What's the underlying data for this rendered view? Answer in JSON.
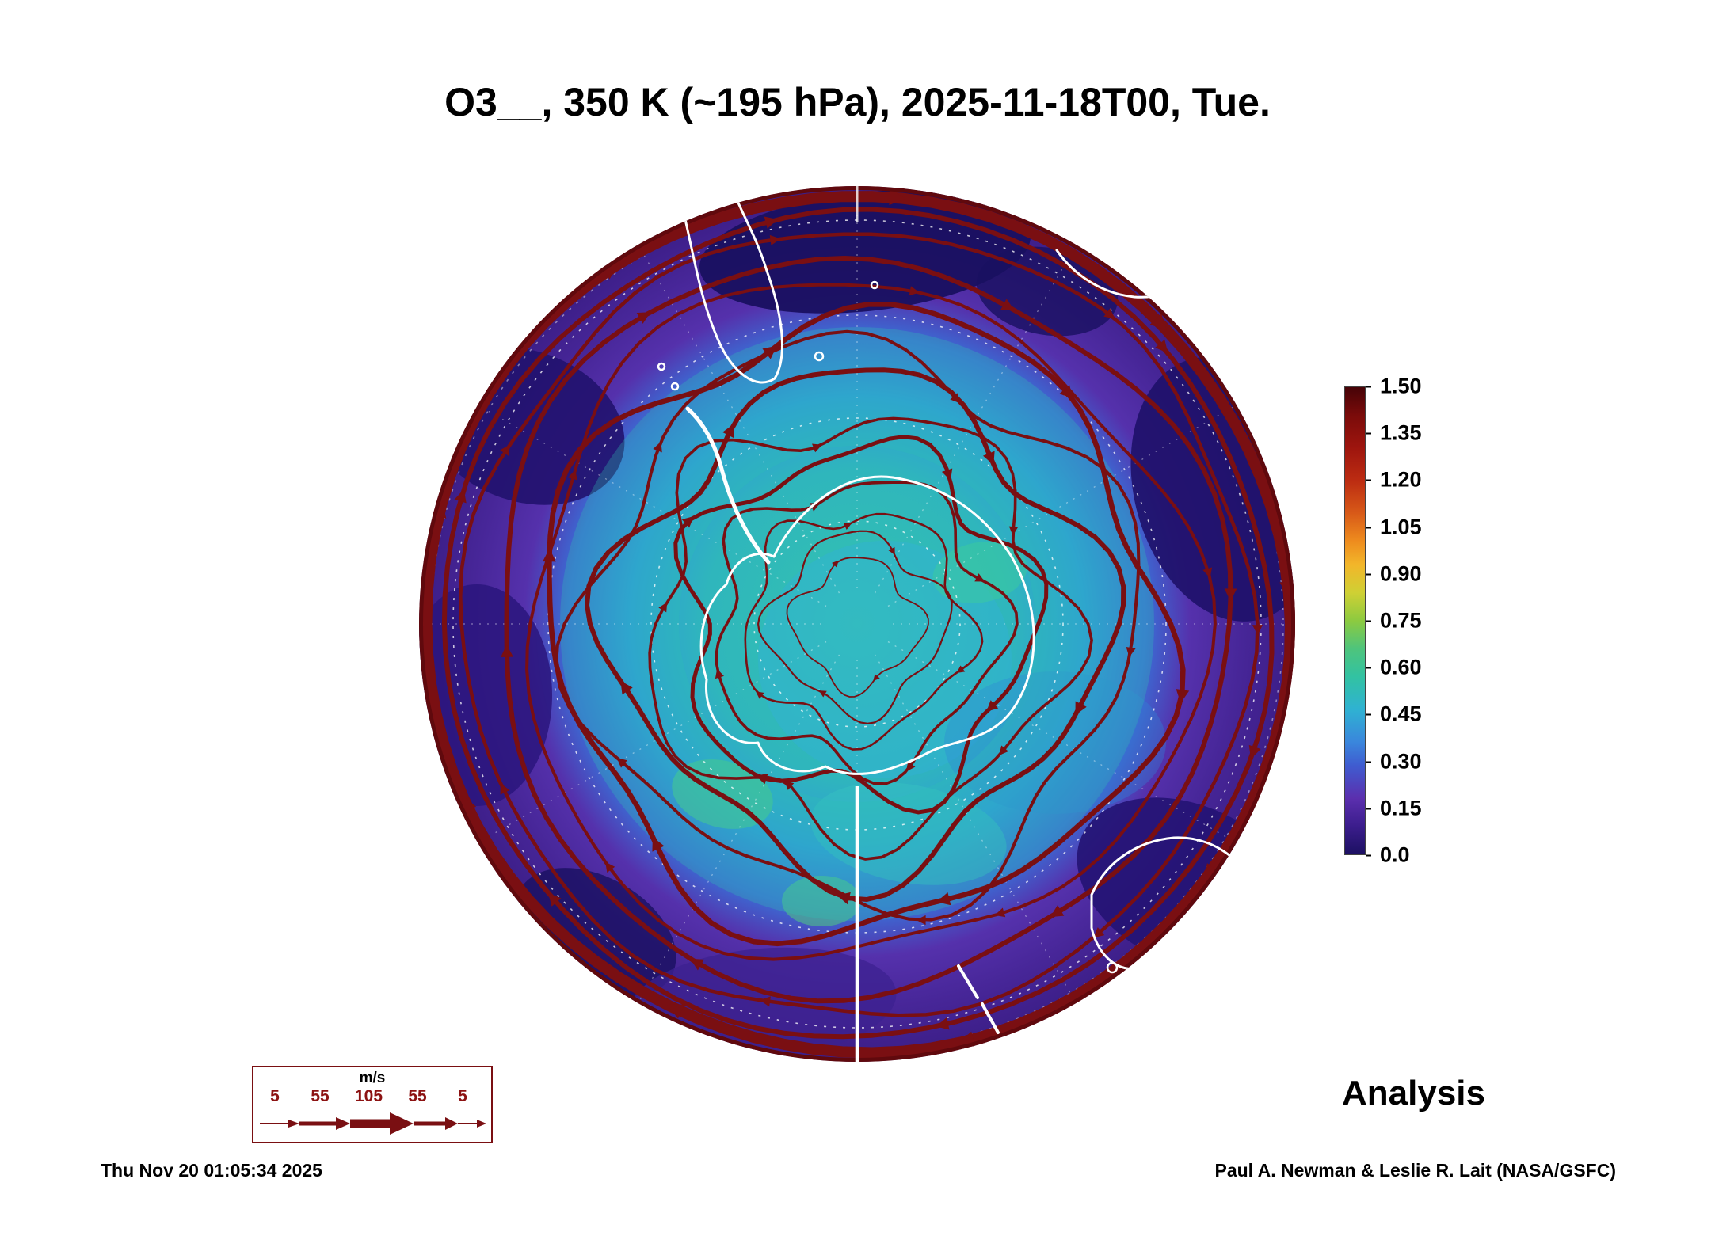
{
  "header": {
    "title": "O3__, 350 K (~195 hPa), 2025-11-18T00, Tue."
  },
  "colorbar": {
    "ticks": [
      "1.50",
      "1.35",
      "1.20",
      "1.05",
      "0.90",
      "0.75",
      "0.60",
      "0.45",
      "0.30",
      "0.15",
      "0.0"
    ],
    "colors_top_to_bottom": [
      "#460307",
      "#9e150e",
      "#d85a18",
      "#f2b62a",
      "#cfd034",
      "#8cca40",
      "#32c2a2",
      "#2fb2d2",
      "#3a86dc",
      "#5b2fae",
      "#1c1062"
    ]
  },
  "wind_legend": {
    "unit": "m/s",
    "values": [
      "5",
      "55",
      "105",
      "55",
      "5"
    ]
  },
  "footer": {
    "analysis_label": "Analysis",
    "timestamp": "Thu Nov 20 01:05:34 2025",
    "credit": "Paul A. Newman & Leslie R. Lait (NASA/GSFC)"
  },
  "chart_data": {
    "type": "heatmap",
    "title": "O3__, 350 K (~195 hPa), 2025-11-18T00, Tue.",
    "variable": "O3__",
    "level": "350 K (~195 hPa)",
    "valid_time": "2025-11-18T00, Tue.",
    "run_type": "Analysis",
    "colorbar": {
      "min": 0.0,
      "max": 1.5,
      "ticks": [
        1.5,
        1.35,
        1.2,
        1.05,
        0.9,
        0.75,
        0.6,
        0.45,
        0.3,
        0.15,
        0.0
      ],
      "orientation": "vertical-right"
    },
    "overlay": {
      "streamlines_unit": "m/s",
      "arrow_scale_values": [
        5,
        55,
        105,
        55,
        5
      ],
      "streamline_color": "#7a0f12"
    },
    "layout_hints": {
      "projection": "south polar view, Antarctica centered",
      "field_values_visible": "mostly 0.0-0.6 (navy/purple/blue/teal), strong dark-red circumpolar jet ring at disc edge",
      "graticule": "white dashed latitude circles and meridians",
      "coastlines": "white"
    }
  }
}
